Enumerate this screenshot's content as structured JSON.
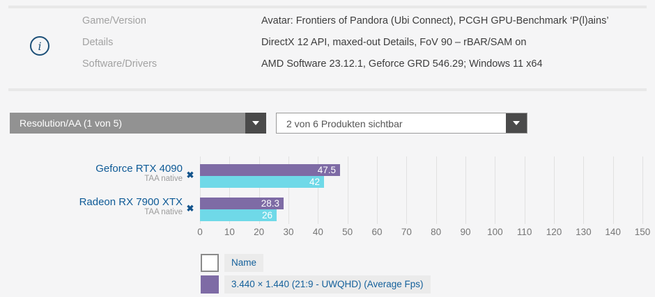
{
  "icons": {
    "info": "i",
    "remove": "✖",
    "dropdown_arrow": "▼"
  },
  "colors": {
    "background": "#f5f5f6",
    "separator": "#e8e8e8",
    "link_blue": "#0e5a96",
    "info_blue": "#1d5078",
    "dropdown_gray": "#929292",
    "dropdown_button_dark": "#4a4a4a",
    "gridline": "#e1e1e1",
    "series_purple": "#7e6ba5",
    "series_cyan": "#6fd9e8"
  },
  "info_panel": {
    "rows": [
      {
        "label": "Game/Version",
        "value": "Avatar: Frontiers of Pandora (Ubi Connect), PCGH GPU-Benchmark ‘P(l)ains’"
      },
      {
        "label": "Details",
        "value": "DirectX 12 API, maxed-out Details, FoV 90 – rBAR/SAM on"
      },
      {
        "label": "Software/Drivers",
        "value": "AMD Software 23.12.1, Geforce GRD 546.29; Windows 11 x64"
      }
    ]
  },
  "filters": {
    "resolution_dropdown": {
      "value": "Resolution/AA (1 von 5)"
    },
    "products_dropdown": {
      "value": "2 von 6 Produkten sichtbar"
    }
  },
  "chart_data": {
    "type": "bar",
    "orientation": "horizontal",
    "categories": [
      {
        "name": "Geforce RTX 4090",
        "setting": "TAA native"
      },
      {
        "name": "Radeon RX 7900 XTX",
        "setting": "TAA native"
      }
    ],
    "series": [
      {
        "name": "3.440 × 1.440 (21:9 - UWQHD) (Average Fps)",
        "color": "#7e6ba5",
        "values": [
          47.5,
          28.3
        ]
      },
      {
        "name": "",
        "color": "#6fd9e8",
        "values": [
          42,
          26
        ]
      }
    ],
    "xlim": [
      0,
      150
    ],
    "xtick_step": 10,
    "grid": true,
    "legend_position": "bottom"
  },
  "legend": {
    "items": [
      {
        "label": "Name",
        "swatch": "empty"
      },
      {
        "label": "3.440 × 1.440 (21:9 - UWQHD) (Average Fps)",
        "swatch": "#7e6ba5"
      }
    ]
  }
}
